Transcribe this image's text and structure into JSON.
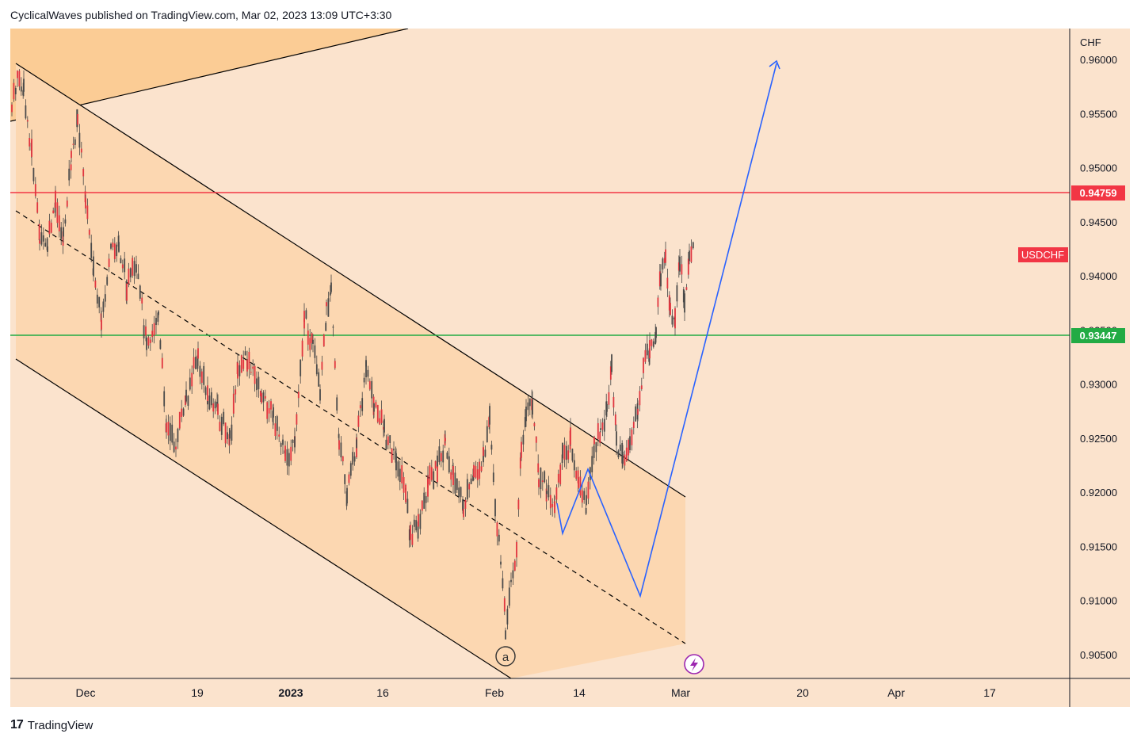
{
  "header": {
    "publisher_line": "CyclicalWaves published on TradingView.com, Mar 02, 2023 13:09 UTC+3:30"
  },
  "footer": {
    "brand": "TradingView",
    "logo_mark": "17"
  },
  "chart_data": {
    "type": "candlestick",
    "symbol": "USDCHF",
    "currency": "CHF",
    "y_axis_ticks": [
      "0.96000",
      "0.95500",
      "0.95000",
      "0.94500",
      "0.94000",
      "0.93500",
      "0.93000",
      "0.92500",
      "0.92000",
      "0.91500",
      "0.91000",
      "0.90500"
    ],
    "x_axis_ticks": [
      "Dec",
      "19",
      "2023",
      "16",
      "Feb",
      "14",
      "Mar",
      "20",
      "Apr",
      "17"
    ],
    "ylim": [
      0.9025,
      0.963
    ],
    "levels": [
      {
        "name": "resistance",
        "value": 0.94759,
        "label": "0.94759",
        "color": "#f23645"
      },
      {
        "name": "support",
        "value": 0.93447,
        "label": "0.93447",
        "color": "#22ab44"
      }
    ],
    "last_price_label": "USDCHF",
    "annotations": [
      "a"
    ],
    "colors": {
      "candle": "#f23645",
      "projection": "#2962ff",
      "channel": "#000000"
    }
  }
}
